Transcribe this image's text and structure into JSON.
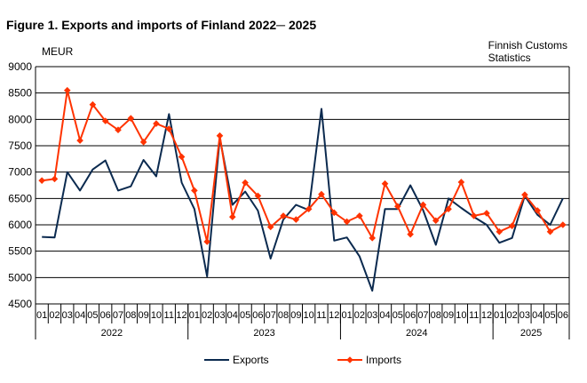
{
  "header": {
    "title": "Figure 1. Exports and imports of Finland 2022─ 2025",
    "source_line1": "Finnish Customs",
    "source_line2": "Statistics"
  },
  "chart_data": {
    "type": "line",
    "title": "Figure 1. Exports and imports of Finland 2022─ 2025",
    "ylabel": "MEUR",
    "xlabel": "",
    "ylim": [
      4500,
      9000
    ],
    "yticks": [
      4500,
      5000,
      5500,
      6000,
      6500,
      7000,
      7500,
      8000,
      8500,
      9000
    ],
    "grid": true,
    "legend_position": "bottom",
    "years": [
      {
        "label": "2022",
        "months": 12
      },
      {
        "label": "2023",
        "months": 12
      },
      {
        "label": "2024",
        "months": 12
      },
      {
        "label": "2025",
        "months": 6
      }
    ],
    "x": [
      "01",
      "02",
      "03",
      "04",
      "05",
      "06",
      "07",
      "08",
      "09",
      "10",
      "11",
      "12",
      "01",
      "02",
      "03",
      "04",
      "05",
      "06",
      "07",
      "08",
      "09",
      "10",
      "11",
      "12",
      "01",
      "02",
      "03",
      "04",
      "05",
      "06",
      "07",
      "08",
      "09",
      "10",
      "11",
      "12",
      "01",
      "02",
      "03",
      "04",
      "05",
      "06"
    ],
    "series": [
      {
        "name": "Exports",
        "color": "#0b2a4f",
        "marker": "none",
        "values": [
          5770,
          5760,
          7000,
          6650,
          7050,
          7220,
          6650,
          6730,
          7230,
          6920,
          8100,
          6800,
          6300,
          5020,
          7650,
          6380,
          6630,
          6270,
          5360,
          6100,
          6380,
          6280,
          8200,
          5700,
          5760,
          5400,
          4750,
          6300,
          6300,
          6750,
          6280,
          5620,
          6500,
          6320,
          6150,
          6000,
          5660,
          5750,
          6550,
          6190,
          6000,
          6500
        ]
      },
      {
        "name": "Imports",
        "color": "#ff3300",
        "marker": "diamond",
        "values": [
          6840,
          6870,
          8550,
          7600,
          8280,
          7970,
          7800,
          8020,
          7570,
          7920,
          7820,
          7290,
          6650,
          5680,
          7690,
          6150,
          6800,
          6550,
          5960,
          6170,
          6100,
          6300,
          6580,
          6230,
          6060,
          6170,
          5750,
          6780,
          6350,
          5820,
          6380,
          6080,
          6300,
          6810,
          6170,
          6220,
          5870,
          5980,
          6570,
          6270,
          5870,
          6000
        ]
      }
    ]
  }
}
